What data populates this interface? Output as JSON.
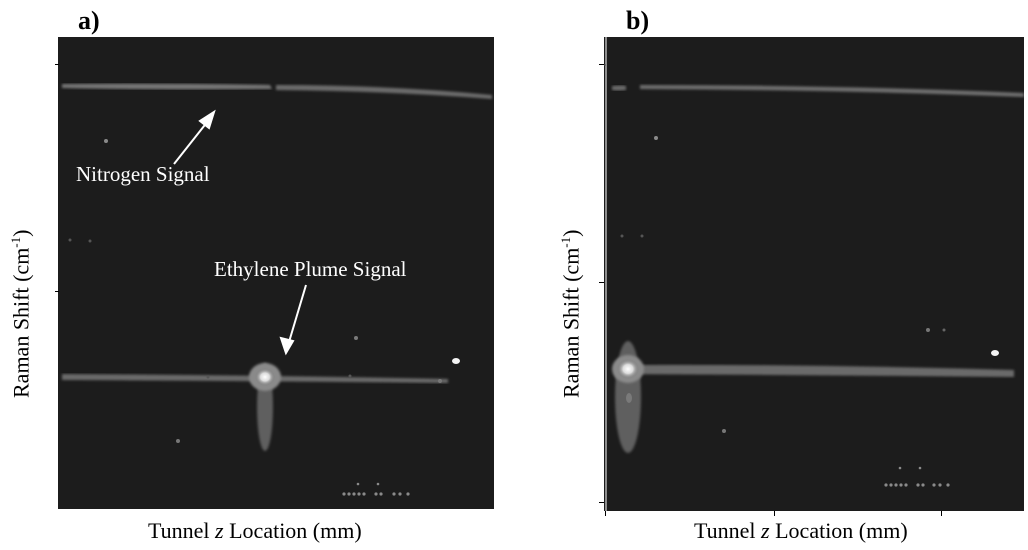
{
  "panels": [
    {
      "label": "a)",
      "xlabel_pre": "Tunnel ",
      "xlabel_var": "z",
      "xlabel_post": " Location (mm)",
      "ylabel_main": "Raman Shift  (cm",
      "ylabel_sup": "-1",
      "ylabel_close": ")",
      "annotations": {
        "nitrogen": "Nitrogen Signal",
        "ethylene": "Ethylene Plume Signal"
      }
    },
    {
      "label": "b)",
      "xlabel_pre": "Tunnel ",
      "xlabel_var": "z",
      "xlabel_post": " Location (mm)",
      "ylabel_main": "Raman Shift  (cm",
      "ylabel_sup": "-1",
      "ylabel_close": ")"
    }
  ],
  "colors": {
    "background": "#1c1c1c",
    "signal": "#6e6e6e",
    "hotspot": "#f2f2f2"
  }
}
